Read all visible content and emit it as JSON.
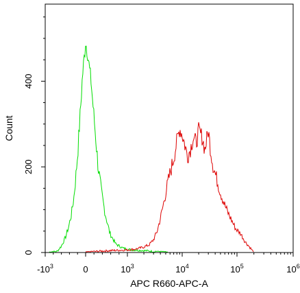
{
  "chart_data": {
    "type": "area",
    "title": "",
    "xlabel": "APC R660-APC-A",
    "ylabel": "Count",
    "x_scale": "biexponential",
    "x_tick_labels": [
      {
        "value": -1000,
        "base": "-10",
        "exp": "3"
      },
      {
        "value": 0,
        "base": "0",
        "exp": ""
      },
      {
        "value": 1000,
        "base": "10",
        "exp": "3"
      },
      {
        "value": 10000,
        "base": "10",
        "exp": "4"
      },
      {
        "value": 100000,
        "base": "10",
        "exp": "5"
      },
      {
        "value": 1000000,
        "base": "10",
        "exp": "6"
      }
    ],
    "y_ticks": [
      0,
      200,
      400
    ],
    "ylim": [
      0,
      580
    ],
    "grid": false,
    "legend": "none",
    "series": [
      {
        "color": "#00dd00",
        "points": [
          [
            -900,
            0
          ],
          [
            -700,
            3
          ],
          [
            -600,
            15
          ],
          [
            -500,
            35
          ],
          [
            -420,
            60
          ],
          [
            -350,
            90
          ],
          [
            -290,
            130
          ],
          [
            -240,
            180
          ],
          [
            -190,
            240
          ],
          [
            -150,
            300
          ],
          [
            -110,
            360
          ],
          [
            -80,
            410
          ],
          [
            -50,
            440
          ],
          [
            -20,
            470
          ],
          [
            0,
            495
          ],
          [
            20,
            480
          ],
          [
            50,
            465
          ],
          [
            90,
            430
          ],
          [
            130,
            400
          ],
          [
            180,
            340
          ],
          [
            240,
            270
          ],
          [
            300,
            200
          ],
          [
            380,
            140
          ],
          [
            470,
            90
          ],
          [
            580,
            45
          ],
          [
            720,
            20
          ],
          [
            900,
            10
          ],
          [
            1200,
            6
          ],
          [
            1700,
            5
          ],
          [
            2300,
            4
          ],
          [
            3200,
            2
          ],
          [
            4500,
            1
          ],
          [
            5500,
            0
          ]
        ]
      },
      {
        "color": "#dd0000",
        "points": [
          [
            0,
            0
          ],
          [
            300,
            3
          ],
          [
            700,
            5
          ],
          [
            1000,
            6
          ],
          [
            1400,
            8
          ],
          [
            1900,
            12
          ],
          [
            2500,
            18
          ],
          [
            3000,
            30
          ],
          [
            3500,
            50
          ],
          [
            4000,
            80
          ],
          [
            4500,
            110
          ],
          [
            5200,
            150
          ],
          [
            6000,
            185
          ],
          [
            7000,
            220
          ],
          [
            8000,
            260
          ],
          [
            9000,
            290
          ],
          [
            10000,
            275
          ],
          [
            11000,
            255
          ],
          [
            12500,
            225
          ],
          [
            14000,
            240
          ],
          [
            16000,
            270
          ],
          [
            18000,
            255
          ],
          [
            20000,
            285
          ],
          [
            23000,
            270
          ],
          [
            26000,
            240
          ],
          [
            30000,
            285
          ],
          [
            33000,
            240
          ],
          [
            37000,
            200
          ],
          [
            43000,
            170
          ],
          [
            50000,
            140
          ],
          [
            60000,
            110
          ],
          [
            70000,
            90
          ],
          [
            80000,
            75
          ],
          [
            95000,
            55
          ],
          [
            115000,
            45
          ],
          [
            140000,
            25
          ],
          [
            170000,
            12
          ],
          [
            200000,
            0
          ]
        ]
      }
    ]
  }
}
